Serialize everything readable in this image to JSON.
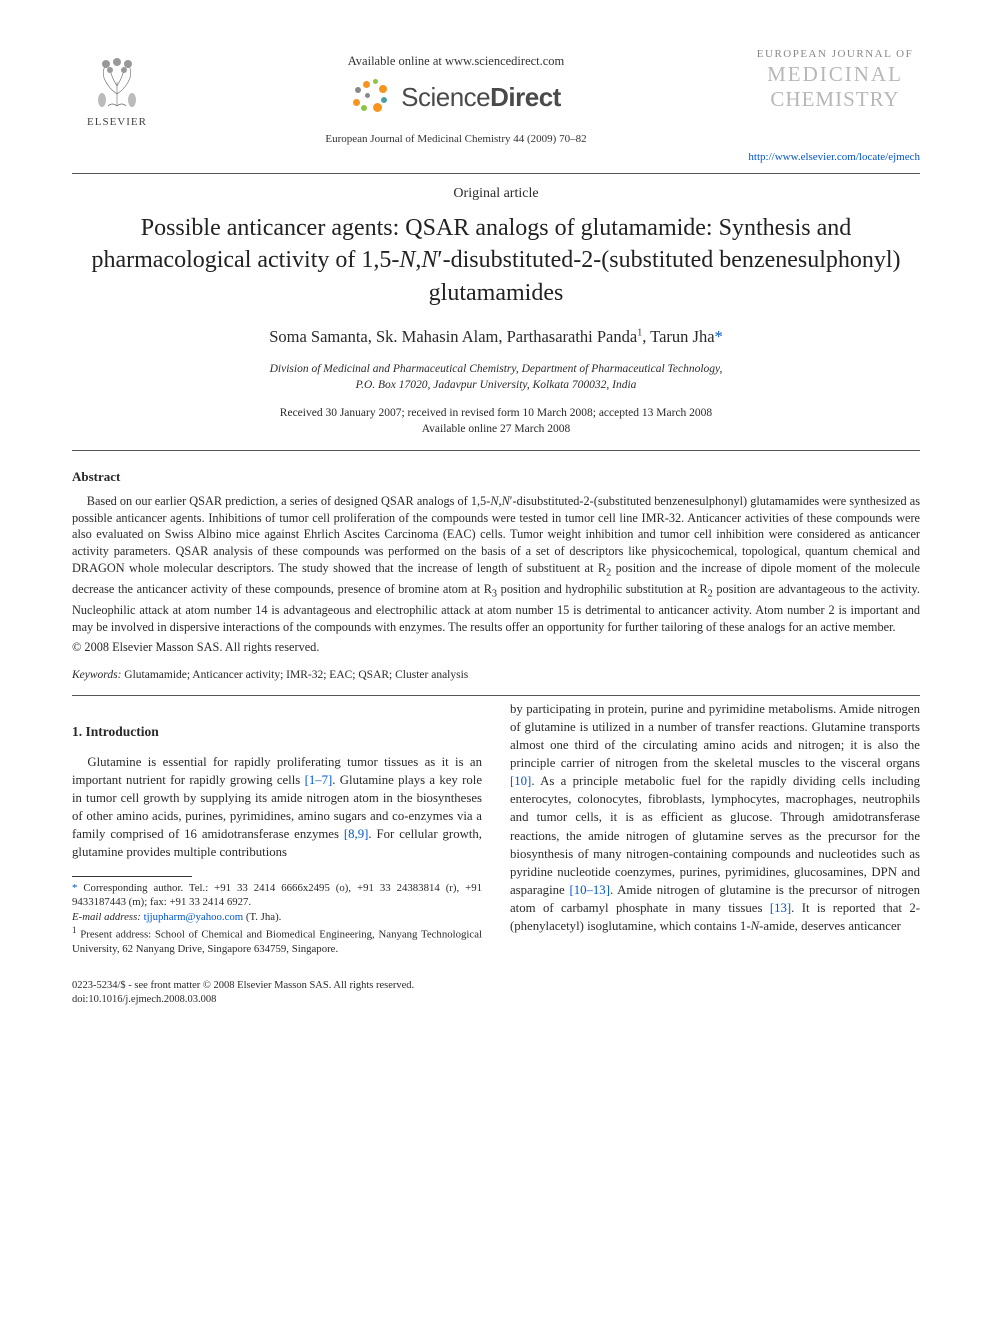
{
  "header": {
    "publisher_label": "ELSEVIER",
    "available_online": "Available online at www.sciencedirect.com",
    "scidirect_brand_left": "Science",
    "scidirect_brand_right": "Direct",
    "journal_ref": "European Journal of Medicinal Chemistry 44 (2009) 70–82",
    "journal_logo_line1": "EUROPEAN JOURNAL OF",
    "journal_logo_line2": "MEDICINAL",
    "journal_logo_line3": "CHEMISTRY",
    "locate_url": "http://www.elsevier.com/locate/ejmech"
  },
  "article": {
    "type": "Original article",
    "title_html": "Possible anticancer agents: QSAR analogs of glutamamide: Synthesis and pharmacological activity of 1,5-<i>N</i>,<i>N</i>′-disubstituted-2-(substituted benzenesulphonyl) glutamamides",
    "authors_html": "Soma Samanta, Sk. Mahasin Alam, Parthasarathi Panda<sup>1</sup>, Tarun Jha<span class=\"star\">*</span>",
    "affiliation_line1": "Division of Medicinal and Pharmaceutical Chemistry, Department of Pharmaceutical Technology,",
    "affiliation_line2": "P.O. Box 17020, Jadavpur University, Kolkata 700032, India",
    "dates_line1": "Received 30 January 2007; received in revised form 10 March 2008; accepted 13 March 2008",
    "dates_line2": "Available online 27 March 2008"
  },
  "abstract": {
    "heading": "Abstract",
    "body_html": "Based on our earlier QSAR prediction, a series of designed QSAR analogs of 1,5-<i>N</i>,<i>N</i>′-disubstituted-2-(substituted benzenesulphonyl) glutamamides were synthesized as possible anticancer agents. Inhibitions of tumor cell proliferation of the compounds were tested in tumor cell line IMR-32. Anticancer activities of these compounds were also evaluated on Swiss Albino mice against Ehrlich Ascites Carcinoma (EAC) cells. Tumor weight inhibition and tumor cell inhibition were considered as anticancer activity parameters. QSAR analysis of these compounds was performed on the basis of a set of descriptors like physicochemical, topological, quantum chemical and DRAGON whole molecular descriptors. The study showed that the increase of length of substituent at R<sub>2</sub> position and the increase of dipole moment of the molecule decrease the anticancer activity of these compounds, presence of bromine atom at R<sub>3</sub> position and hydrophilic substitution at R<sub>2</sub> position are advantageous to the activity. Nucleophilic attack at atom number 14 is advantageous and electrophilic attack at atom number 15 is detrimental to anticancer activity. Atom number 2 is important and may be involved in dispersive interactions of the compounds with enzymes. The results offer an opportunity for further tailoring of these analogs for an active member.",
    "copyright": "© 2008 Elsevier Masson SAS. All rights reserved."
  },
  "keywords": {
    "label": "Keywords:",
    "list": "Glutamamide; Anticancer activity; IMR-32; EAC; QSAR; Cluster analysis"
  },
  "intro": {
    "heading": "1. Introduction",
    "col1_html": "Glutamine is essential for rapidly proliferating tumor tissues as it is an important nutrient for rapidly growing cells <span class=\"ref-link\">[1–7]</span>. Glutamine plays a key role in tumor cell growth by supplying its amide nitrogen atom in the biosyntheses of other amino acids, purines, pyrimidines, amino sugars and co-enzymes via a family comprised of 16 amidotransferase enzymes <span class=\"ref-link\">[8,9]</span>. For cellular growth, glutamine provides multiple contributions",
    "col2_html": "by participating in protein, purine and pyrimidine metabolisms. Amide nitrogen of glutamine is utilized in a number of transfer reactions. Glutamine transports almost one third of the circulating amino acids and nitrogen; it is also the principle carrier of nitrogen from the skeletal muscles to the visceral organs <span class=\"ref-link\">[10]</span>. As a principle metabolic fuel for the rapidly dividing cells including enterocytes, colonocytes, fibroblasts, lymphocytes, macrophages, neutrophils and tumor cells, it is as efficient as glucose. Through amidotransferase reactions, the amide nitrogen of glutamine serves as the precursor for the biosynthesis of many nitrogen-containing compounds and nucleotides such as pyridine nucleotide coenzymes, purines, pyrimidines, glucosamines, DPN and asparagine <span class=\"ref-link\">[10–13]</span>. Amide nitrogen of glutamine is the precursor of nitrogen atom of carbamyl phosphate in many tissues <span class=\"ref-link\">[13]</span>. It is reported that 2-(phenylacetyl) isoglutamine, which contains 1-<i>N</i>-amide, deserves anticancer"
  },
  "footnotes": {
    "corr": "Corresponding author. Tel.: +91 33 2414 6666x2495 (o), +91 33 24383814 (r), +91 9433187443 (m); fax: +91 33 2414 6927.",
    "email_label": "E-mail address:",
    "email": "tjjupharm@yahoo.com",
    "email_suffix": "(T. Jha).",
    "present": "Present address: School of Chemical and Biomedical Engineering, Nanyang Technological University, 62 Nanyang Drive, Singapore 634759, Singapore."
  },
  "footer": {
    "front_matter": "0223-5234/$ - see front matter © 2008 Elsevier Masson SAS. All rights reserved.",
    "doi": "doi:10.1016/j.ejmech.2008.03.008"
  },
  "colors": {
    "link": "#0055cc",
    "logo_gray": "#b8b8b8",
    "sd_orange": "#f7941e",
    "sd_green": "#8bc53f",
    "sd_teal": "#4aa0a6",
    "sd_gray": "#888888"
  }
}
